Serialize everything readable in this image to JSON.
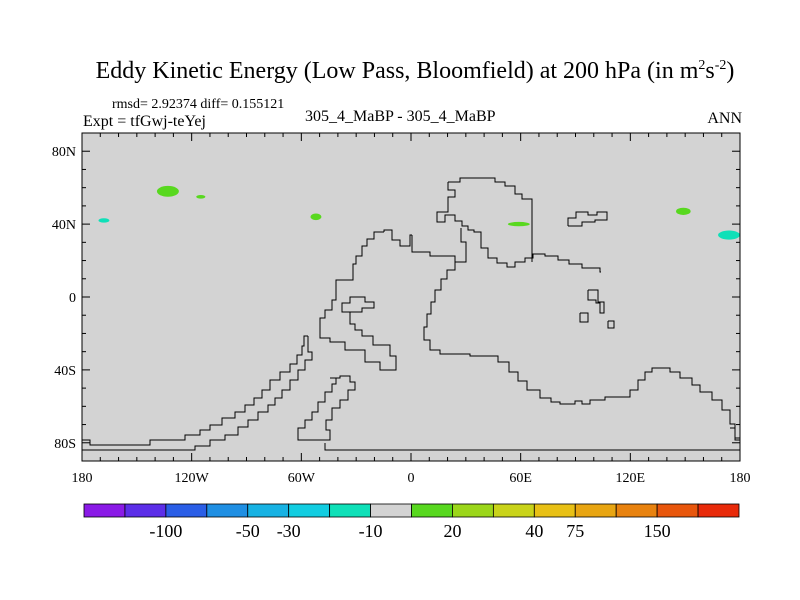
{
  "chart_data": {
    "type": "contour-map",
    "title": {
      "main": "Eddy Kinetic Energy (Low Pass, Bloomfield) at 200 hPa (in m",
      "sup1": "2",
      "mid": "s",
      "sup2": "-2",
      "end": ")"
    },
    "stats": "rmsd= 2.92374 diff= 0.155121",
    "expt": "Expt = tfGwj-teYej",
    "case": "305_4_MaBP - 305_4_MaBP",
    "season": "ANN",
    "lat_ticks": [
      "80N",
      "40N",
      "0",
      "40S",
      "80S"
    ],
    "lon_ticks": [
      "180",
      "120W",
      "60W",
      "0",
      "60E",
      "120E",
      "180"
    ],
    "lon_range": [
      -180,
      180
    ],
    "lat_range": [
      -90,
      90
    ],
    "colorbar": {
      "labels": [
        "-100",
        "-50",
        "-30",
        "-10",
        "20",
        "40",
        "75",
        "150"
      ],
      "colors": [
        "#8a1ae6",
        "#5c2ee8",
        "#2a5ee6",
        "#1f8fe3",
        "#17b2e3",
        "#12cde1",
        "#0fe0b8",
        "#d3d3d3",
        "#58d81f",
        "#9bd61a",
        "#c9d31a",
        "#e8c015",
        "#e8a512",
        "#e8820f",
        "#e8560c",
        "#e82a0a"
      ]
    },
    "blobs": [
      {
        "lon": -133,
        "lat": 58,
        "rx": 6,
        "ry": 3,
        "color": "#58d81f"
      },
      {
        "lon": -115,
        "lat": 55,
        "rx": 2.5,
        "ry": 1,
        "color": "#58d81f"
      },
      {
        "lon": -168,
        "lat": 42,
        "rx": 3,
        "ry": 1.2,
        "color": "#0fe0b8"
      },
      {
        "lon": -52,
        "lat": 44,
        "rx": 3,
        "ry": 1.8,
        "color": "#58d81f"
      },
      {
        "lon": 59,
        "lat": 40,
        "rx": 6,
        "ry": 1.2,
        "color": "#58d81f"
      },
      {
        "lon": 149,
        "lat": 47,
        "rx": 4,
        "ry": 2,
        "color": "#58d81f"
      },
      {
        "lon": 174,
        "lat": 34,
        "rx": 6,
        "ry": 2.5,
        "color": "#0fe0b8"
      }
    ]
  }
}
